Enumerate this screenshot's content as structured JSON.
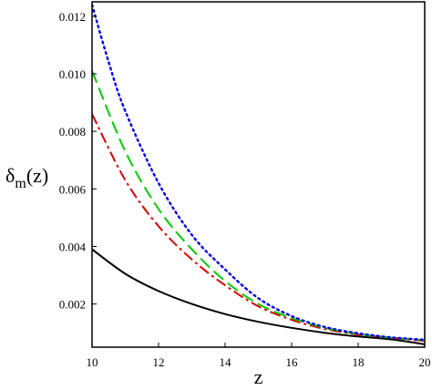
{
  "chart_data": {
    "type": "line",
    "title": "",
    "xlabel": "z",
    "ylabel": {
      "main": "δ",
      "sub": "m",
      "arg": "(z)"
    },
    "xlim": [
      10,
      20
    ],
    "ylim": [
      0.0005,
      0.0125
    ],
    "xticks": [
      10,
      12,
      14,
      16,
      18,
      20
    ],
    "xtick_labels": [
      "10",
      "12",
      "14",
      "16",
      "18",
      "20"
    ],
    "yticks": [
      0.002,
      0.004,
      0.006,
      0.008,
      0.01,
      0.012
    ],
    "ytick_labels": [
      "0.002",
      "0.004",
      "0.006",
      "0.008",
      "0.010",
      "0.012"
    ],
    "grid": false,
    "legend": "none",
    "series": [
      {
        "color": "#000000",
        "dash": "solid",
        "x": [
          10,
          11,
          12,
          13,
          14,
          15,
          16,
          17,
          18,
          19,
          20
        ],
        "y": [
          0.0039,
          0.00305,
          0.00245,
          0.002,
          0.00165,
          0.00138,
          0.00117,
          0.001,
          0.00087,
          0.00077,
          0.0006
        ]
      },
      {
        "color": "#dd0000",
        "dash": "dashdot",
        "x": [
          10,
          11,
          12,
          13,
          14,
          15,
          16,
          17,
          18,
          19,
          20
        ],
        "y": [
          0.0086,
          0.0063,
          0.0047,
          0.00355,
          0.00265,
          0.00192,
          0.00145,
          0.00113,
          0.00094,
          0.00082,
          0.00072
        ]
      },
      {
        "color": "#00cc00",
        "dash": "dashed",
        "x": [
          10,
          11,
          12,
          13,
          14,
          15,
          16,
          17,
          18,
          19,
          20
        ],
        "y": [
          0.0101,
          0.0073,
          0.0053,
          0.0039,
          0.0028,
          0.002,
          0.00151,
          0.00117,
          0.00096,
          0.00083,
          0.00074
        ]
      },
      {
        "color": "#0000ee",
        "dash": "dotted",
        "x": [
          10,
          10.5,
          11,
          12,
          13,
          14,
          15,
          16,
          17,
          18,
          19,
          20
        ],
        "y": [
          0.0124,
          0.0104,
          0.0087,
          0.0062,
          0.0044,
          0.0032,
          0.0022,
          0.00158,
          0.0012,
          0.00098,
          0.00084,
          0.00076
        ]
      }
    ]
  }
}
